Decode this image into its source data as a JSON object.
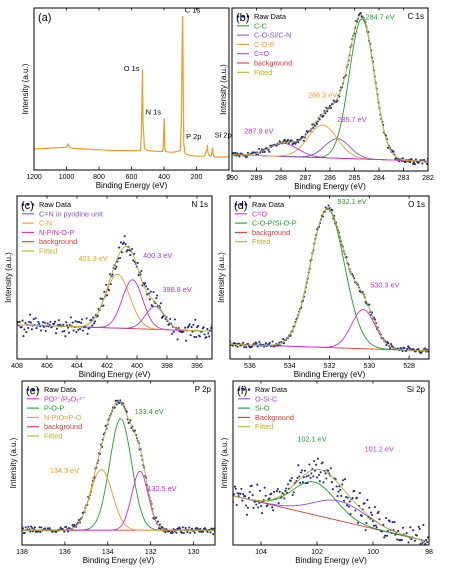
{
  "figure": {
    "panels": [
      "a",
      "b",
      "c",
      "d",
      "e",
      "f"
    ]
  },
  "colors": {
    "raw": "#1f2a8a",
    "orange": "#f39a2b",
    "green": "#1f9e2c",
    "magenta": "#d12bd9",
    "purple": "#8a4fd9",
    "red": "#e03a3a",
    "olive": "#b9b02a",
    "black": "#000000"
  },
  "chart_data": [
    {
      "id": "a",
      "type": "line",
      "panel_label": "(a)",
      "title": "",
      "xlabel": "Binding Energy (eV)",
      "ylabel": "Intensity (a.u.)",
      "xlim": [
        1200,
        0
      ],
      "xticks": [
        1200,
        1000,
        800,
        600,
        400,
        200,
        0
      ],
      "xtick_labels": [
        "1200",
        "1000",
        "800",
        "600",
        "400",
        "200",
        "0"
      ],
      "ylim": [
        0,
        1
      ],
      "series": [
        {
          "color": "orange",
          "x": [
            1200,
            1100,
            1000,
            990,
            980,
            970,
            900,
            800,
            700,
            600,
            545,
            540,
            535,
            532,
            529,
            520,
            500,
            450,
            410,
            405,
            400,
            398,
            395,
            390,
            370,
            340,
            300,
            293,
            288,
            285,
            282,
            278,
            270,
            240,
            200,
            180,
            160,
            150,
            135,
            133,
            130,
            120,
            110,
            105,
            101,
            98,
            90,
            80,
            60,
            40,
            20,
            0
          ],
          "y": [
            0.13,
            0.135,
            0.14,
            0.16,
            0.14,
            0.135,
            0.13,
            0.125,
            0.12,
            0.12,
            0.12,
            0.2,
            0.49,
            0.62,
            0.3,
            0.13,
            0.12,
            0.115,
            0.115,
            0.13,
            0.28,
            0.32,
            0.14,
            0.115,
            0.11,
            0.11,
            0.12,
            0.3,
            0.8,
            0.95,
            0.55,
            0.16,
            0.1,
            0.09,
            0.085,
            0.085,
            0.085,
            0.09,
            0.13,
            0.155,
            0.11,
            0.085,
            0.085,
            0.11,
            0.14,
            0.1,
            0.08,
            0.08,
            0.08,
            0.08,
            0.08,
            0.08
          ]
        }
      ],
      "annotations": [
        {
          "text": "C 1s",
          "x": 285,
          "y": 0.96,
          "pos": "right"
        },
        {
          "text": "O 1s",
          "x": 532,
          "y": 0.63,
          "pos": "left"
        },
        {
          "text": "N 1s",
          "x": 400,
          "y": 0.36,
          "pos": "left"
        },
        {
          "text": "P 2p",
          "x": 133,
          "y": 0.155,
          "pos": "left-label"
        },
        {
          "text": "Si 2p",
          "x": 101,
          "y": 0.14,
          "pos": "up"
        }
      ]
    },
    {
      "id": "b",
      "type": "scatter",
      "panel_label": "(b)",
      "title": "C 1s",
      "xlabel": "Binding Energy (eV)",
      "ylabel": "Intensity (a.u.)",
      "xlim": [
        290,
        282
      ],
      "xticks": [
        290,
        289,
        288,
        287,
        286,
        285,
        284,
        283,
        282
      ],
      "xtick_labels": [
        "290",
        "289",
        "288",
        "287",
        "286",
        "285",
        "284",
        "283",
        "282"
      ],
      "ylim": [
        0,
        1
      ],
      "baseline": {
        "y_start": 0.1,
        "y_end": 0.06
      },
      "noise": 0.018,
      "legend": [
        {
          "label": "Raw Data",
          "style": "dots",
          "color": "raw"
        },
        {
          "label": "C-C",
          "style": "line",
          "color": "green"
        },
        {
          "label": "C-O-Si/C-N",
          "style": "line",
          "color": "purple"
        },
        {
          "label": "C-O-P",
          "style": "line",
          "color": "orange"
        },
        {
          "label": "C=O",
          "style": "line",
          "color": "magenta"
        },
        {
          "label": "background",
          "style": "line",
          "color": "red"
        },
        {
          "label": "Fitted",
          "style": "line",
          "color": "olive"
        }
      ],
      "peaks": [
        {
          "center": 284.7,
          "height": 0.86,
          "fwhm": 1.2,
          "color": "green"
        },
        {
          "center": 285.7,
          "height": 0.12,
          "fwhm": 1.2,
          "color": "purple"
        },
        {
          "center": 286.3,
          "height": 0.2,
          "fwhm": 1.4,
          "color": "orange"
        },
        {
          "center": 287.9,
          "height": 0.08,
          "fwhm": 1.4,
          "color": "magenta"
        }
      ],
      "peak_labels": [
        {
          "text": "284.7 eV",
          "x": 284.55,
          "y": 0.93,
          "color": "green"
        },
        {
          "text": "286.3 eV",
          "x": 286.9,
          "y": 0.45,
          "color": "orange"
        },
        {
          "text": "285.7 eV",
          "x": 285.7,
          "y": 0.3,
          "color": "magenta"
        },
        {
          "text": "287.9 eV",
          "x": 289.5,
          "y": 0.23,
          "color": "magenta"
        }
      ]
    },
    {
      "id": "c",
      "type": "scatter",
      "panel_label": "(c)",
      "title": "N 1s",
      "xlabel": "Binding Energy (eV)",
      "ylabel": "Intensity (a.u.)",
      "xlim": [
        408,
        395
      ],
      "xticks": [
        408,
        406,
        404,
        402,
        400,
        398,
        396
      ],
      "xtick_labels": [
        "408",
        "406",
        "404",
        "402",
        "400",
        "398",
        "396"
      ],
      "ylim": [
        0,
        1
      ],
      "baseline": {
        "y_start": 0.21,
        "y_end": 0.17
      },
      "noise": 0.05,
      "legend": [
        {
          "label": "Raw Data",
          "style": "dots",
          "color": "raw"
        },
        {
          "label": "C=N in pyridine unit",
          "style": "line",
          "color": "purple"
        },
        {
          "label": "C-N",
          "style": "line",
          "color": "orange"
        },
        {
          "label": "N-P/N-O-P",
          "style": "line",
          "color": "magenta"
        },
        {
          "label": "background",
          "style": "line",
          "color": "red"
        },
        {
          "label": "Fitted",
          "style": "line",
          "color": "olive"
        }
      ],
      "peaks": [
        {
          "center": 401.3,
          "height": 0.33,
          "fwhm": 1.9,
          "color": "orange"
        },
        {
          "center": 400.3,
          "height": 0.3,
          "fwhm": 1.6,
          "color": "magenta"
        },
        {
          "center": 398.8,
          "height": 0.14,
          "fwhm": 1.5,
          "color": "purple"
        }
      ],
      "peak_labels": [
        {
          "text": "401.3 eV",
          "x": 403.9,
          "y": 0.6,
          "color": "orange"
        },
        {
          "text": "400.3 eV",
          "x": 399.6,
          "y": 0.62,
          "color": "magenta"
        },
        {
          "text": "398.8 eV",
          "x": 398.3,
          "y": 0.41,
          "color": "magenta"
        }
      ]
    },
    {
      "id": "d",
      "type": "scatter",
      "panel_label": "(d)",
      "title": "O 1s",
      "xlabel": "Binding Energy (eV)",
      "ylabel": "Intensity (a.u.)",
      "xlim": [
        537,
        527
      ],
      "xticks": [
        536,
        534,
        532,
        530,
        528
      ],
      "xtick_labels": [
        "536",
        "534",
        "532",
        "530",
        "528"
      ],
      "ylim": [
        0,
        1
      ],
      "baseline": {
        "y_start": 0.09,
        "y_end": 0.05
      },
      "noise": 0.018,
      "legend": [
        {
          "label": "Raw Data",
          "style": "dots",
          "color": "raw"
        },
        {
          "label": "C=O",
          "style": "line",
          "color": "magenta"
        },
        {
          "label": "C-O-P/Si-O-P",
          "style": "line",
          "color": "green"
        },
        {
          "label": "background",
          "style": "line",
          "color": "red"
        },
        {
          "label": "Fitted",
          "style": "line",
          "color": "olive"
        }
      ],
      "peaks": [
        {
          "center": 532.1,
          "height": 0.85,
          "fwhm": 2.0,
          "color": "green"
        },
        {
          "center": 530.3,
          "height": 0.24,
          "fwhm": 1.4,
          "color": "magenta"
        }
      ],
      "peak_labels": [
        {
          "text": "532.1 eV",
          "x": 531.6,
          "y": 0.95,
          "color": "green"
        },
        {
          "text": "530.3 eV",
          "x": 529.95,
          "y": 0.44,
          "color": "magenta"
        }
      ]
    },
    {
      "id": "e",
      "type": "scatter",
      "panel_label": "(e)",
      "title": "P 2p",
      "xlabel": "Binding Energy (eV)",
      "ylabel": "Intensity (a.u.)",
      "xlim": [
        138,
        129
      ],
      "xticks": [
        138,
        136,
        134,
        132,
        130
      ],
      "xtick_labels": [
        "138",
        "136",
        "134",
        "132",
        "130"
      ],
      "ylim": [
        0,
        1
      ],
      "baseline": {
        "y_start": 0.09,
        "y_end": 0.09
      },
      "noise": 0.022,
      "legend": [
        {
          "label": "Raw Data",
          "style": "dots",
          "color": "raw"
        },
        {
          "label": "PO³⁻/P₂O₇⁴⁻",
          "style": "line",
          "color": "magenta"
        },
        {
          "label": "P-O-P",
          "style": "line",
          "color": "green"
        },
        {
          "label": "N-P/O=P-O",
          "style": "line",
          "color": "orange"
        },
        {
          "label": "background",
          "style": "line",
          "color": "red"
        },
        {
          "label": "Fitted",
          "style": "line",
          "color": "olive"
        }
      ],
      "peaks": [
        {
          "center": 133.4,
          "height": 0.68,
          "fwhm": 1.2,
          "color": "green"
        },
        {
          "center": 134.3,
          "height": 0.37,
          "fwhm": 1.2,
          "color": "orange"
        },
        {
          "center": 132.5,
          "height": 0.36,
          "fwhm": 0.9,
          "color": "magenta"
        }
      ],
      "peak_labels": [
        {
          "text": "133.4 eV",
          "x": 132.75,
          "y": 0.8,
          "color": "green"
        },
        {
          "text": "134.3 eV",
          "x": 136.7,
          "y": 0.44,
          "color": "orange"
        },
        {
          "text": "132.5 eV",
          "x": 132.15,
          "y": 0.33,
          "color": "magenta"
        }
      ]
    },
    {
      "id": "f",
      "type": "scatter",
      "panel_label": "(f)",
      "title": "Si 2p",
      "xlabel": "Binding Energy (eV)",
      "ylabel": "Intensity (a.u.)",
      "xlim": [
        105,
        98
      ],
      "xticks": [
        104,
        102,
        100,
        98
      ],
      "xtick_labels": [
        "104",
        "102",
        "100",
        "98"
      ],
      "ylim": [
        0,
        1
      ],
      "baseline": {
        "y_start": 0.3,
        "y_end": 0.02
      },
      "noise": 0.08,
      "legend": [
        {
          "label": "Raw Data",
          "style": "dots",
          "color": "raw"
        },
        {
          "label": "O-Si-C",
          "style": "line",
          "color": "purple"
        },
        {
          "label": "Si-O",
          "style": "line",
          "color": "green"
        },
        {
          "label": "Background",
          "style": "line",
          "color": "red"
        },
        {
          "label": "Fitted",
          "style": "line",
          "color": "olive"
        }
      ],
      "peaks": [
        {
          "center": 102.1,
          "height": 0.2,
          "fwhm": 1.8,
          "color": "green"
        },
        {
          "center": 101.2,
          "height": 0.12,
          "fwhm": 2.2,
          "color": "purple"
        }
      ],
      "peak_labels": [
        {
          "text": "102.1 eV",
          "x": 102.7,
          "y": 0.63,
          "color": "green"
        },
        {
          "text": "101.2 eV",
          "x": 100.3,
          "y": 0.57,
          "color": "magenta"
        }
      ]
    }
  ]
}
